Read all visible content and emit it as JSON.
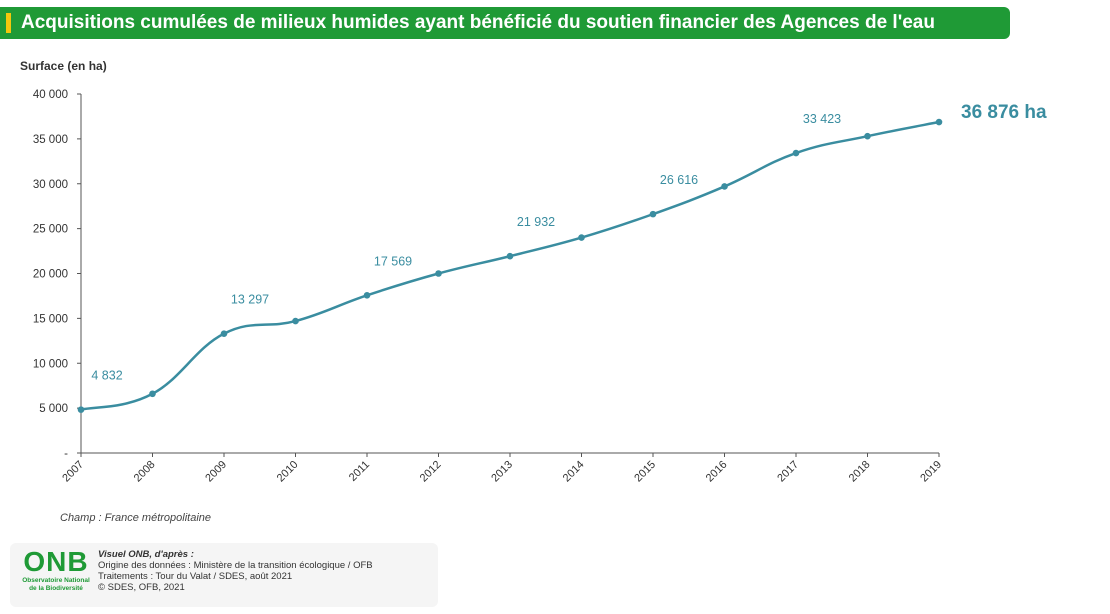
{
  "header": {
    "title": "Acquisitions cumulées de milieux humides ayant bénéficié du soutien financier des Agences de l'eau"
  },
  "colors": {
    "title_bg": "#1f9a36",
    "title_accent": "#f3c80d",
    "line": "#3a8da0",
    "label": "#3a8da0",
    "axis": "#555555"
  },
  "chart_data": {
    "type": "line",
    "ylabel": "Surface (en ha)",
    "x": [
      "2007",
      "2008",
      "2009",
      "2010",
      "2011",
      "2012",
      "2013",
      "2014",
      "2015",
      "2016",
      "2017",
      "2018",
      "2019"
    ],
    "series": [
      {
        "values": [
          4832,
          6600,
          13297,
          14700,
          17569,
          20000,
          21932,
          24000,
          26616,
          29700,
          33423,
          35300,
          36876
        ]
      }
    ],
    "ylim": [
      0,
      40000
    ],
    "yticks": [
      0,
      5000,
      10000,
      15000,
      20000,
      25000,
      30000,
      35000,
      40000
    ],
    "ytick_labels": [
      "-",
      "5 000",
      "10 000",
      "15 000",
      "20 000",
      "25 000",
      "30 000",
      "35 000",
      "40 000"
    ],
    "data_labels": [
      {
        "x": "2007",
        "text": "4 832"
      },
      {
        "x": "2009",
        "text": "13 297"
      },
      {
        "x": "2011",
        "text": "17 569"
      },
      {
        "x": "2013",
        "text": "21 932"
      },
      {
        "x": "2015",
        "text": "26 616"
      },
      {
        "x": "2017",
        "text": "33 423"
      }
    ],
    "final_label": "36 876 ha",
    "grid": false,
    "legend": "none"
  },
  "notes": {
    "champ": "Champ : France métropolitaine"
  },
  "footer": {
    "logo": "ONB",
    "logo_sub1": "Observatoire National",
    "logo_sub2": "de la Biodiversité",
    "visuel": "Visuel ONB, d'après :",
    "origine": "Origine des données : Ministère de la transition écologique / OFB",
    "traitements": "Traitements : Tour du Valat / SDES, août 2021",
    "copyright": "©  SDES, OFB, 2021"
  }
}
